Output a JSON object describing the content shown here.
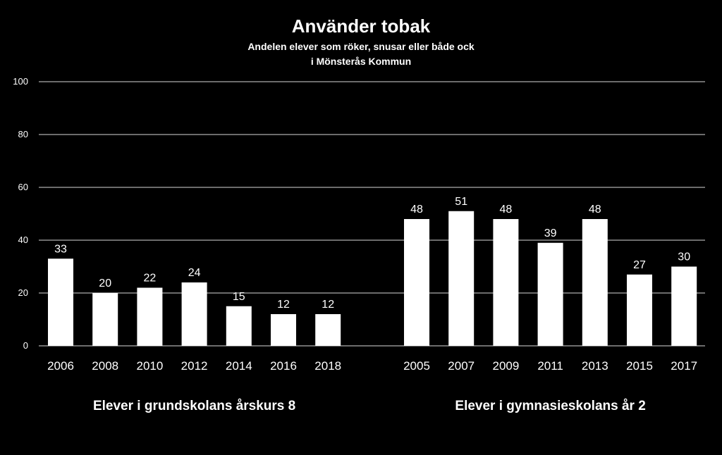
{
  "chart_data": {
    "type": "bar",
    "title": "Använder tobak",
    "subtitle_lines": [
      "Andelen elever som röker, snusar eller både ock",
      "i Mönsterås Kommun"
    ],
    "ylim": [
      0,
      100
    ],
    "yticks": [
      "0",
      "20",
      "40",
      "60",
      "80",
      "100"
    ],
    "grid": true,
    "bar_color": "#ffffff",
    "background": "#000000",
    "groups": [
      {
        "label": "Elever i grundskolans årskurs 8",
        "categories": [
          "2006",
          "2008",
          "2010",
          "2012",
          "2014",
          "2016",
          "2018"
        ],
        "values": [
          33,
          20,
          22,
          24,
          15,
          12,
          12
        ]
      },
      {
        "label": "Elever i gymnasieskolans år 2",
        "categories": [
          "2005",
          "2007",
          "2009",
          "2011",
          "2013",
          "2015",
          "2017"
        ],
        "values": [
          48,
          51,
          48,
          39,
          48,
          27,
          30
        ]
      }
    ]
  }
}
